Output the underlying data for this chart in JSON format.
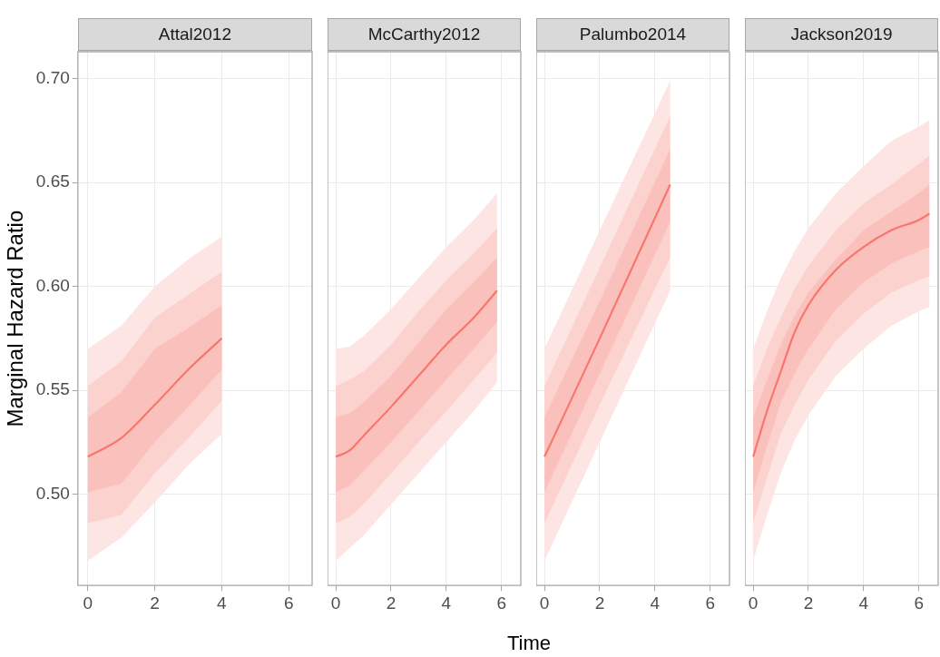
{
  "chart_data": [
    {
      "type": "line",
      "title": "Attal2012",
      "ylabel": "Marginal Hazard Ratio",
      "x": [
        0,
        1,
        2,
        3,
        4
      ],
      "xlim": [
        -0.3,
        6.7
      ],
      "xticks": [
        0,
        2,
        4,
        6
      ],
      "ylim": [
        0.456,
        0.713
      ],
      "yticks": [
        {
          "value": 0.5,
          "label": "0.50"
        },
        0.55,
        {
          "value": 0.6,
          "label": "0.60"
        },
        0.65,
        {
          "value": 0.7,
          "label": "0.70"
        }
      ],
      "grid": true,
      "series": [
        {
          "color": "#fde5e3",
          "values": [
            null,
            null,
            null,
            null,
            null
          ],
          "lower": [
            0.468,
            0.479,
            0.496,
            0.514,
            0.529
          ],
          "upper": [
            0.57,
            0.581,
            0.6,
            0.613,
            0.624
          ]
        },
        {
          "color": "#fbd2ce",
          "values": [
            null,
            null,
            null,
            null,
            null
          ],
          "lower": [
            0.486,
            0.49,
            0.51,
            0.527,
            0.545
          ],
          "upper": [
            0.552,
            0.564,
            0.585,
            0.596,
            0.607
          ]
        },
        {
          "color": "#f8766d",
          "values": [
            0.518,
            0.527,
            0.543,
            0.56,
            0.575
          ],
          "lower": [
            0.501,
            0.505,
            0.525,
            0.542,
            0.56
          ],
          "upper": [
            0.537,
            0.549,
            0.57,
            0.58,
            0.591
          ]
        }
      ]
    },
    {
      "type": "line",
      "title": "McCarthy2012",
      "xlabel": "Time",
      "x": [
        0,
        0.5,
        1,
        2,
        3,
        4,
        5,
        5.84
      ],
      "xlim": [
        -0.3,
        6.7
      ],
      "xticks": [
        0,
        2,
        4,
        6
      ],
      "ylim": [
        0.456,
        0.713
      ],
      "yticks": [
        0.5,
        0.55,
        0.6,
        0.65,
        0.7
      ],
      "grid": true,
      "tick_labels": "x",
      "series": [
        {
          "color": "#fde5e3",
          "values": [
            null,
            null,
            null,
            null,
            null,
            null,
            null,
            null
          ],
          "lower": [
            0.468,
            0.474,
            0.48,
            0.495,
            0.51,
            0.525,
            0.54,
            0.554
          ],
          "upper": [
            0.57,
            0.571,
            0.576,
            0.589,
            0.604,
            0.619,
            0.632,
            0.645
          ]
        },
        {
          "color": "#fbd2ce",
          "values": [
            null,
            null,
            null,
            null,
            null,
            null,
            null,
            null
          ],
          "lower": [
            0.486,
            0.489,
            0.495,
            0.51,
            0.525,
            0.54,
            0.555,
            0.568
          ],
          "upper": [
            0.552,
            0.555,
            0.559,
            0.572,
            0.588,
            0.603,
            0.616,
            0.628
          ]
        },
        {
          "color": "#f8766d",
          "values": [
            0.518,
            0.521,
            0.528,
            0.542,
            0.557,
            0.572,
            0.585,
            0.598
          ],
          "lower": [
            0.501,
            0.504,
            0.511,
            0.525,
            0.54,
            0.555,
            0.57,
            0.583
          ],
          "upper": [
            0.537,
            0.539,
            0.544,
            0.557,
            0.573,
            0.589,
            0.602,
            0.614
          ]
        }
      ]
    },
    {
      "type": "line",
      "title": "Palumbo2014",
      "x": [
        0,
        2,
        4.55
      ],
      "xlim": [
        -0.3,
        6.7
      ],
      "xticks": [
        0,
        2,
        4,
        6
      ],
      "ylim": [
        0.456,
        0.713
      ],
      "yticks": [
        0.5,
        0.55,
        0.6,
        0.65,
        0.7
      ],
      "grid": true,
      "tick_labels": "x",
      "series": [
        {
          "color": "#fde5e3",
          "values": [
            null,
            null,
            null
          ],
          "lower": [
            0.468,
            0.525,
            0.598
          ],
          "upper": [
            0.57,
            0.627,
            0.699
          ]
        },
        {
          "color": "#fbd2ce",
          "values": [
            null,
            null,
            null
          ],
          "lower": [
            0.486,
            0.543,
            0.614
          ],
          "upper": [
            0.552,
            0.609,
            0.682
          ]
        },
        {
          "color": "#f8766d",
          "values": [
            0.518,
            0.575,
            0.649
          ],
          "lower": [
            0.501,
            0.558,
            0.631
          ],
          "upper": [
            0.537,
            0.593,
            0.666
          ]
        }
      ]
    },
    {
      "type": "line",
      "title": "Jackson2019",
      "x": [
        0,
        0.5,
        1,
        1.5,
        2,
        3,
        4,
        5,
        6,
        6.38
      ],
      "xlim": [
        -0.3,
        6.7
      ],
      "xticks": [
        0,
        2,
        4,
        6
      ],
      "ylim": [
        0.456,
        0.713
      ],
      "yticks": [
        0.5,
        0.55,
        0.6,
        0.65,
        0.7
      ],
      "grid": true,
      "tick_labels": "x",
      "series": [
        {
          "color": "#fde5e3",
          "values": [
            null,
            null,
            null,
            null,
            null,
            null,
            null,
            null,
            null,
            null
          ],
          "lower": [
            0.468,
            0.49,
            0.51,
            0.526,
            0.538,
            0.557,
            0.57,
            0.581,
            0.588,
            0.59
          ],
          "upper": [
            0.57,
            0.588,
            0.604,
            0.617,
            0.628,
            0.645,
            0.658,
            0.67,
            0.677,
            0.68
          ]
        },
        {
          "color": "#fbd2ce",
          "values": [
            null,
            null,
            null,
            null,
            null,
            null,
            null,
            null,
            null,
            null
          ],
          "lower": [
            0.486,
            0.508,
            0.529,
            0.543,
            0.555,
            0.574,
            0.587,
            0.597,
            0.603,
            0.605
          ],
          "upper": [
            0.552,
            0.57,
            0.585,
            0.599,
            0.61,
            0.627,
            0.64,
            0.649,
            0.659,
            0.663
          ]
        },
        {
          "color": "#f8766d",
          "values": [
            0.518,
            0.54,
            0.559,
            0.578,
            0.591,
            0.608,
            0.619,
            0.627,
            0.632,
            0.635
          ],
          "lower": [
            0.501,
            0.523,
            0.544,
            0.558,
            0.57,
            0.589,
            0.602,
            0.611,
            0.617,
            0.619
          ],
          "upper": [
            0.537,
            0.555,
            0.572,
            0.586,
            0.597,
            0.613,
            0.627,
            0.636,
            0.645,
            0.649
          ]
        }
      ]
    }
  ]
}
